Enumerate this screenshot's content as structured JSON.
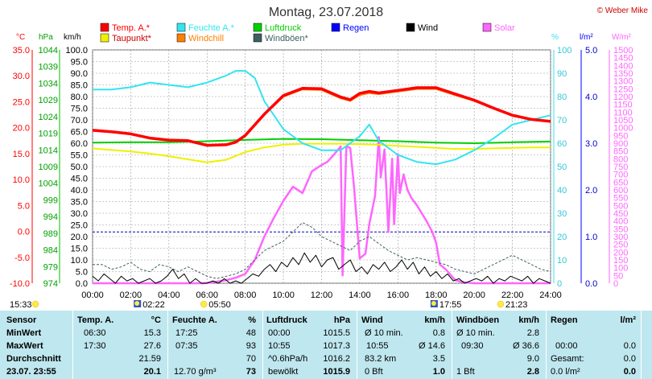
{
  "title": "Montag, 23.07.2018",
  "copyright": "© Weber Mike",
  "legend": [
    {
      "label": "Temp. A.*",
      "color": "#ff0000"
    },
    {
      "label": "Feuchte A.*",
      "color": "#33e5f0"
    },
    {
      "label": "Luftdruck",
      "color": "#00d000"
    },
    {
      "label": "Regen",
      "color": "#0000ff"
    },
    {
      "label": "Wind",
      "color": "#000000"
    },
    {
      "label": "Solar",
      "color": "#ff66ff"
    },
    {
      "label": "Taupunkt*",
      "color": "#f0f000"
    },
    {
      "label": "Windchill",
      "color": "#ff8000"
    },
    {
      "label": "Windböen*",
      "color": "#406060"
    }
  ],
  "axis_units": {
    "temp": "°C",
    "pressure": "hPa",
    "wind": "km/h",
    "humidity": "%",
    "rain": "l/m²",
    "solar": "W/m²"
  },
  "chart_data": {
    "type": "line",
    "x_ticks": [
      "00:00",
      "02:00",
      "04:00",
      "06:00",
      "08:00",
      "10:00",
      "12:00",
      "14:00",
      "16:00",
      "18:00",
      "20:00",
      "22:00",
      "24:00"
    ],
    "xlim": [
      0,
      24
    ],
    "axes": {
      "temp": {
        "range": [
          -10,
          35
        ],
        "ticks": [
          "35.0",
          "30.0",
          "25.0",
          "20.0",
          "15.0",
          "10.0",
          "5.0",
          "0.0",
          "-5.0",
          "-10.0"
        ]
      },
      "pressure": {
        "range": [
          974,
          1044
        ],
        "ticks": [
          "1044",
          "1039",
          "1034",
          "1029",
          "1024",
          "1019",
          "1014",
          "1009",
          "1004",
          "999",
          "994",
          "989",
          "984",
          "979",
          "974"
        ]
      },
      "wind": {
        "range": [
          0,
          100
        ],
        "ticks": [
          "100.0",
          "95.0",
          "90.0",
          "85.0",
          "80.0",
          "75.0",
          "70.0",
          "65.0",
          "60.0",
          "55.0",
          "50.0",
          "45.0",
          "40.0",
          "35.0",
          "30.0",
          "25.0",
          "20.0",
          "15.0",
          "10.0",
          "5.0",
          "0.0"
        ]
      },
      "humidity": {
        "range": [
          0,
          100
        ],
        "ticks": [
          "100",
          "90",
          "80",
          "70",
          "60",
          "50",
          "40",
          "30",
          "20",
          "10",
          "0"
        ]
      },
      "rain": {
        "range": [
          0,
          5
        ],
        "ticks": [
          "5.0",
          "4.0",
          "3.0",
          "2.0",
          "1.0",
          "0.0"
        ]
      },
      "solar": {
        "range": [
          0,
          1500
        ],
        "ticks": [
          "1500",
          "1450",
          "1400",
          "1350",
          "1300",
          "1250",
          "1200",
          "1150",
          "1100",
          "1050",
          "1000",
          "950",
          "900",
          "850",
          "800",
          "750",
          "700",
          "650",
          "600",
          "550",
          "500",
          "450",
          "400",
          "350",
          "300",
          "250",
          "200",
          "150",
          "100",
          "50",
          "0"
        ]
      }
    },
    "series": [
      {
        "name": "Temp. A.*",
        "axis": "temp",
        "color": "#ff0000",
        "width": 3.5,
        "x": [
          0,
          1,
          2,
          3,
          4,
          5,
          6,
          7,
          7.5,
          8,
          9,
          10,
          11,
          12,
          13,
          13.5,
          14,
          14.5,
          15,
          16,
          17,
          18,
          19,
          20,
          21,
          22,
          23,
          24
        ],
        "y": [
          19.5,
          19.2,
          18.8,
          18,
          17.6,
          17.5,
          16.6,
          16.7,
          17.2,
          18.5,
          22.6,
          26.2,
          27.6,
          27.5,
          25.9,
          25.4,
          26.6,
          27.0,
          26.7,
          27.2,
          27.7,
          27.7,
          26.5,
          25.3,
          23.8,
          22.4,
          21.6,
          21.2
        ]
      },
      {
        "name": "Windchill",
        "axis": "temp",
        "color": "#ff8000",
        "width": 1.2,
        "x": [
          0,
          1,
          2,
          3,
          4,
          5,
          6,
          7,
          7.5,
          8,
          9,
          10,
          11,
          12,
          13,
          13.5,
          14,
          14.5,
          15,
          16,
          17,
          18,
          19,
          20,
          21,
          22,
          23,
          24
        ],
        "y": [
          19.5,
          19.2,
          18.8,
          18,
          17.6,
          17.5,
          16.6,
          16.7,
          17.2,
          18.5,
          22.4,
          25.9,
          27.3,
          27.2,
          25.6,
          25.1,
          26.2,
          26.6,
          26.4,
          26.9,
          27.4,
          27.4,
          26.2,
          25.1,
          23.6,
          22.2,
          21.5,
          21.1
        ]
      },
      {
        "name": "Feuchte A.*",
        "axis": "humidity",
        "color": "#33e5f0",
        "width": 2,
        "x": [
          0,
          1,
          2,
          3,
          4,
          5,
          6,
          7,
          7.5,
          8,
          8.5,
          9,
          10,
          11,
          12,
          13,
          14,
          14.5,
          15,
          16,
          17,
          18,
          19,
          20,
          21,
          22,
          23,
          24
        ],
        "y": [
          83,
          83,
          84,
          86,
          85,
          84,
          86,
          89,
          91,
          91,
          88,
          78,
          66,
          60,
          57,
          57,
          63,
          68,
          61,
          55,
          52,
          51,
          53,
          57,
          62,
          68,
          70,
          72
        ]
      },
      {
        "name": "Luftdruck",
        "axis": "pressure",
        "color": "#00d000",
        "width": 2,
        "x": [
          0,
          2,
          4,
          6,
          8,
          10,
          12,
          14,
          16,
          18,
          20,
          22,
          24
        ],
        "y": [
          1016.2,
          1016.3,
          1016.3,
          1016.6,
          1017.0,
          1017.3,
          1017.2,
          1016.9,
          1016.6,
          1016.2,
          1016.0,
          1016.3,
          1016.5
        ]
      },
      {
        "name": "Taupunkt*",
        "axis": "temp",
        "color": "#f0f000",
        "width": 2,
        "x": [
          0,
          1,
          2,
          3,
          4,
          5,
          6,
          7,
          8,
          9,
          10,
          11,
          12,
          13,
          14,
          15,
          16,
          17,
          18,
          19,
          20,
          21,
          22,
          23,
          24
        ],
        "y": [
          16,
          15.7,
          15.4,
          15.0,
          14.5,
          13.9,
          13.3,
          13.8,
          15.3,
          16.2,
          16.7,
          16.9,
          16.9,
          16.9,
          16.8,
          16.7,
          16.5,
          16.3,
          16.1,
          15.9,
          15.9,
          16.0,
          16.1,
          16.2,
          16.2
        ]
      },
      {
        "name": "Solar",
        "axis": "solar",
        "color": "#ff66ff",
        "width": 2.5,
        "x": [
          0,
          5.8,
          6.5,
          7,
          7.5,
          8,
          8.5,
          9,
          9.5,
          10,
          10.5,
          11,
          11.5,
          12,
          12.3,
          12.6,
          12.8,
          13.0,
          13.1,
          13.3,
          13.5,
          13.7,
          14,
          14.3,
          14.5,
          14.8,
          15,
          15.1,
          15.3,
          15.5,
          15.7,
          15.8,
          16.0,
          16.1,
          16.3,
          16.5,
          16.7,
          17,
          17.5,
          17.8,
          18,
          18.2,
          18.5,
          19,
          19.5,
          20,
          24
        ],
        "y": [
          0,
          0,
          10,
          20,
          35,
          60,
          150,
          300,
          420,
          530,
          620,
          580,
          720,
          760,
          780,
          820,
          850,
          880,
          50,
          880,
          870,
          620,
          160,
          190,
          380,
          560,
          940,
          680,
          860,
          330,
          800,
          380,
          830,
          580,
          700,
          600,
          550,
          500,
          400,
          330,
          260,
          120,
          90,
          20,
          5,
          0,
          0
        ]
      },
      {
        "name": "Windböen*",
        "axis": "wind",
        "color": "#406060",
        "width": 1,
        "dash": "3,2",
        "x": [
          0,
          0.5,
          1,
          1.5,
          2,
          2.5,
          3,
          3.5,
          4,
          4.5,
          5,
          5.5,
          6,
          6.5,
          7,
          7.5,
          8,
          8.5,
          9,
          9.5,
          10,
          10.5,
          11,
          11.5,
          12,
          12.5,
          13,
          13.5,
          14,
          14.5,
          15,
          15.5,
          16,
          16.5,
          17,
          17.5,
          18,
          18.5,
          19,
          19.5,
          20,
          20.5,
          21,
          21.5,
          22,
          22.5,
          23,
          23.5,
          24
        ],
        "y": [
          8,
          8,
          6,
          7,
          9,
          6,
          5,
          8,
          7,
          5,
          7,
          5,
          3,
          2,
          3,
          4,
          6,
          10,
          14,
          16,
          18,
          22,
          26,
          24,
          20,
          18,
          16,
          14,
          18,
          20,
          17,
          14,
          12,
          10,
          11,
          10,
          9,
          8,
          6,
          5,
          4,
          6,
          8,
          10,
          12,
          10,
          8,
          6,
          5
        ]
      },
      {
        "name": "Wind",
        "axis": "wind",
        "color": "#000000",
        "width": 1,
        "x": [
          0,
          0.3,
          0.6,
          0.9,
          1.2,
          1.5,
          1.8,
          2.1,
          2.4,
          2.7,
          3,
          3.3,
          3.6,
          3.9,
          4.2,
          4.5,
          4.8,
          5.1,
          5.4,
          5.7,
          6,
          6.3,
          6.6,
          6.9,
          7.2,
          7.5,
          7.8,
          8.1,
          8.4,
          8.7,
          9,
          9.3,
          9.6,
          9.9,
          10.2,
          10.5,
          10.8,
          11.1,
          11.4,
          11.7,
          12,
          12.3,
          12.6,
          12.9,
          13.2,
          13.5,
          13.8,
          14.1,
          14.4,
          14.7,
          15,
          15.3,
          15.6,
          15.9,
          16.2,
          16.5,
          16.8,
          17.1,
          17.4,
          17.7,
          18,
          18.3,
          18.6,
          18.9,
          19.2,
          19.5,
          19.8,
          20.1,
          20.4,
          20.7,
          21,
          21.3,
          21.6,
          21.9,
          22.2,
          22.5,
          22.8,
          23.1,
          23.4,
          23.7,
          24
        ],
        "y": [
          3,
          1,
          4,
          2,
          0,
          3,
          1,
          2,
          0,
          1,
          2,
          0,
          1,
          3,
          6,
          2,
          4,
          0,
          2,
          0,
          0,
          1,
          0,
          2,
          0,
          1,
          0,
          2,
          4,
          3,
          6,
          8,
          5,
          9,
          7,
          11,
          8,
          13,
          9,
          12,
          7,
          10,
          11,
          6,
          8,
          10,
          5,
          7,
          4,
          8,
          6,
          9,
          5,
          7,
          10,
          6,
          9,
          4,
          7,
          3,
          5,
          2,
          4,
          1,
          2,
          0,
          1,
          2,
          1,
          3,
          0,
          2,
          1,
          3,
          2,
          1,
          3,
          0,
          2,
          1,
          0
        ]
      }
    ],
    "rain_baseline": 1.1,
    "markers": [
      {
        "time": "15:33",
        "x": 0.5,
        "type": "sun"
      },
      {
        "time": "02:22",
        "x": 2.37,
        "type": "moon"
      },
      {
        "time": "05:50",
        "x": 5.83,
        "type": "sun"
      },
      {
        "time": "17:55",
        "x": 17.92,
        "type": "moon"
      },
      {
        "time": "21:23",
        "x": 21.38,
        "type": "sun"
      }
    ]
  },
  "table": {
    "header": [
      "Sensor",
      "Temp. A.",
      "°C",
      "Feuchte A.",
      "%",
      "Luftdruck",
      "hPa",
      "Wind",
      "km/h",
      "Windböen",
      "km/h",
      "Regen",
      "l/m²"
    ],
    "rows": [
      {
        "label": "MinWert",
        "temp_time": "06:30",
        "temp": "15.3",
        "hum_time": "17:25",
        "hum": "48",
        "press_time": "00:00",
        "press": "1015.5",
        "wind_desc": "Ø 10 min.",
        "wind": "0.8",
        "gust_desc": "Ø 10 min.",
        "gust": "2.8",
        "rain_time": "",
        "rain": ""
      },
      {
        "label": "MaxWert",
        "temp_time": "17:30",
        "temp": "27.6",
        "hum_time": "07:35",
        "hum": "93",
        "press_time": "10:55",
        "press": "1017.3",
        "wind_time": "10:55",
        "wind": "Ø 14.6",
        "gust_time": "09:30",
        "gust": "Ø 36.6",
        "rain_time": "00:00",
        "rain": "0.0"
      },
      {
        "label": "Durchschnitt",
        "temp": "21.59",
        "hum": "70",
        "press_time": "^0.6hPa/h",
        "press": "1016.2",
        "wind_desc": "83.2 km",
        "wind": "3.5",
        "gust": "9.0",
        "rain_desc": "Gesamt:",
        "rain": "0.0"
      },
      {
        "label": "23.07. 23:55",
        "temp": "20.1",
        "hum_desc": "12.70 g/m³",
        "hum": "73",
        "press_desc": "bewölkt",
        "press": "1015.9",
        "wind_desc": "0 Bft",
        "wind": "1.0",
        "gust_desc": "1 Bft",
        "gust": "2.8",
        "rain_desc": "0.0 l/m²",
        "rain": "0.0"
      }
    ]
  }
}
